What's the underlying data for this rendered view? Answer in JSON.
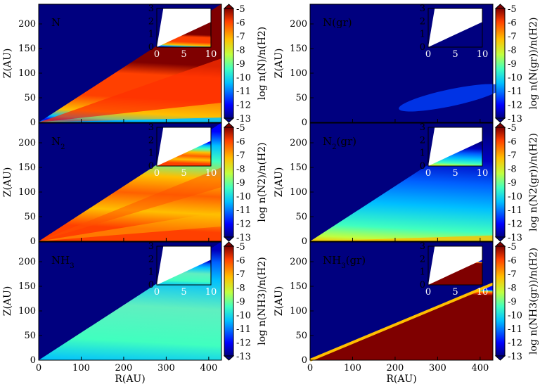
{
  "chart_data": {
    "type": "heatmap",
    "x_range": [
      0,
      430
    ],
    "y_range": [
      0,
      240
    ],
    "x_ticks": [
      "0",
      "100",
      "200",
      "300",
      "400"
    ],
    "y_ticks": [
      "0",
      "50",
      "100",
      "150",
      "200"
    ],
    "inset_x_ticks": [
      "0",
      "5",
      "10"
    ],
    "inset_y_ticks": [
      "0",
      "1",
      "2",
      "3"
    ],
    "colorbar_ticks": [
      "-5",
      "-6",
      "-7",
      "-8",
      "-9",
      "-10",
      "-11",
      "-12",
      "-13"
    ],
    "colorbar_range": [
      -13,
      -5
    ],
    "colormap": [
      "#00007f",
      "#0000ff",
      "#00bfff",
      "#40ffbf",
      "#c0ff40",
      "#ffbf00",
      "#ff4000",
      "#7f0000"
    ],
    "xlabel": "R(AU)",
    "ylabel": "Z(AU)",
    "panels": [
      {
        "title": "N",
        "sub": "",
        "title_suffix": "",
        "cb_label": "log n(N)/n(H2)",
        "col": 0,
        "row": 0,
        "style": "N"
      },
      {
        "title": "N(gr)",
        "sub": "",
        "title_suffix": "",
        "cb_label": "log n(N(gr))/n(H2)",
        "col": 1,
        "row": 0,
        "style": "Ngr"
      },
      {
        "title": "N",
        "sub": "2",
        "title_suffix": "",
        "cb_label": "log n(N2)/n(H2)",
        "col": 0,
        "row": 1,
        "style": "N2"
      },
      {
        "title": "N",
        "sub": "2",
        "title_suffix": "(gr)",
        "cb_label": "log n(N2(gr))/n(H2)",
        "col": 1,
        "row": 1,
        "style": "N2gr"
      },
      {
        "title": "NH",
        "sub": "3",
        "title_suffix": "",
        "cb_label": "log n(NH3)/n(H2)",
        "col": 0,
        "row": 2,
        "style": "NH3"
      },
      {
        "title": "NH",
        "sub": "3",
        "title_suffix": "(gr)",
        "cb_label": "log n(NH3(gr))/n(H2)",
        "col": 1,
        "row": 2,
        "style": "NH3gr"
      }
    ]
  }
}
